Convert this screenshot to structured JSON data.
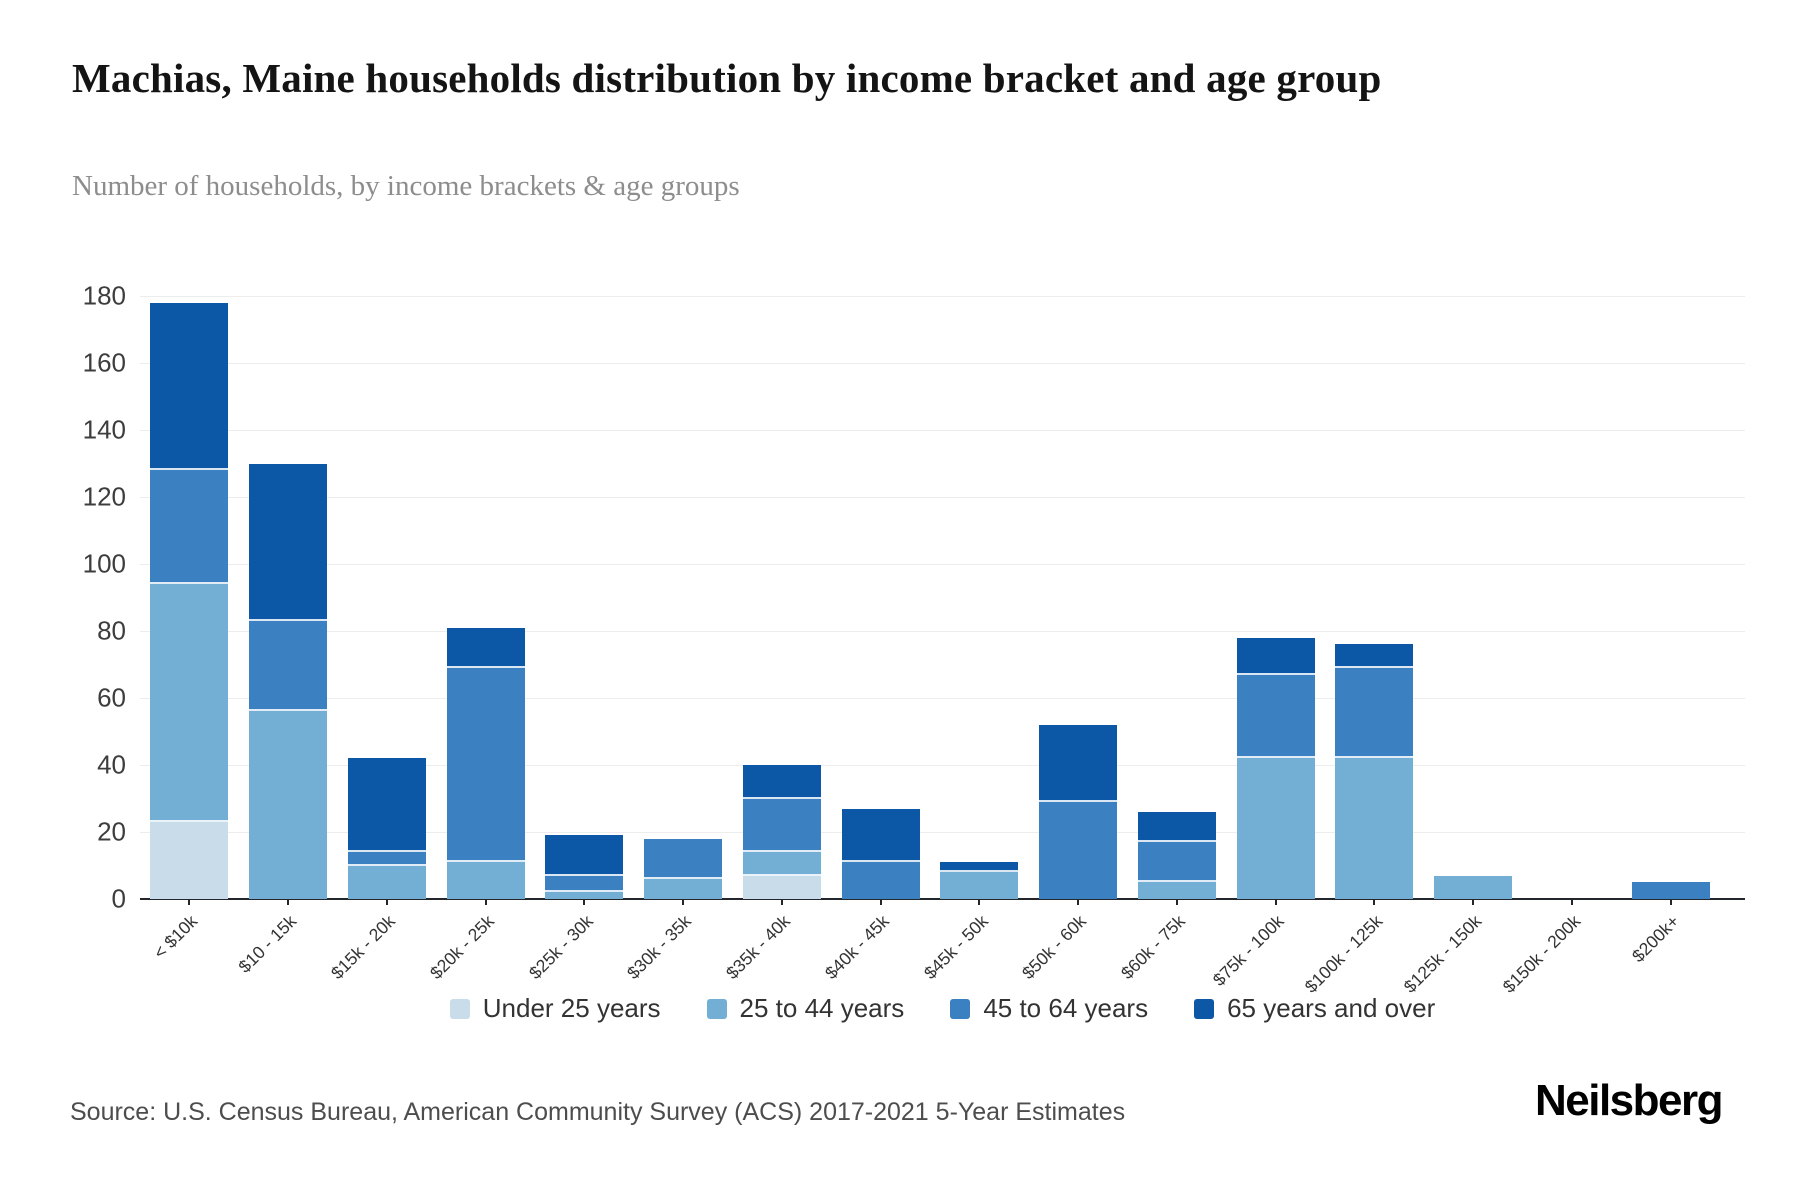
{
  "header": {
    "title": "Machias, Maine households distribution by income bracket and age group",
    "subtitle": "Number of households, by income brackets & age groups"
  },
  "footer": {
    "source": "Source: U.S. Census Bureau, American Community Survey (ACS) 2017-2021 5-Year Estimates",
    "brand": "Neilsberg"
  },
  "chart_data": {
    "type": "bar",
    "stacked": true,
    "title": "Machias, Maine households distribution by income bracket and age group",
    "subtitle": "Number of households, by income brackets & age groups",
    "categories": [
      "< $10k",
      "$10 - 15k",
      "$15k - 20k",
      "$20k - 25k",
      "$25k - 30k",
      "$30k - 35k",
      "$35k - 40k",
      "$40k - 45k",
      "$45k - 50k",
      "$50k - 60k",
      "$60k - 75k",
      "$75k - 100k",
      "$100k - 125k",
      "$125k - 150k",
      "$150k - 200k",
      "$200k+"
    ],
    "series": [
      {
        "name": "Under 25 years",
        "color": "#c9dcea",
        "values": [
          23,
          0,
          0,
          0,
          0,
          0,
          7,
          0,
          0,
          0,
          0,
          0,
          0,
          0,
          0,
          0
        ]
      },
      {
        "name": "25 to 44 years",
        "color": "#73aed4",
        "values": [
          71,
          56,
          10,
          11,
          2,
          6,
          7,
          0,
          8,
          0,
          5,
          42,
          42,
          7,
          0,
          0
        ]
      },
      {
        "name": "45 to 64 years",
        "color": "#3b80c0",
        "values": [
          34,
          27,
          4,
          58,
          5,
          12,
          16,
          11,
          0,
          29,
          12,
          25,
          27,
          0,
          0,
          5
        ]
      },
      {
        "name": "65 years and over",
        "color": "#0d57a7",
        "values": [
          50,
          47,
          28,
          12,
          12,
          0,
          10,
          16,
          3,
          23,
          9,
          11,
          7,
          0,
          0,
          0
        ]
      }
    ],
    "totals": [
      178,
      130,
      42,
      81,
      19,
      18,
      40,
      27,
      11,
      52,
      26,
      78,
      76,
      7,
      0,
      5
    ],
    "ylabel": "",
    "xlabel": "",
    "ylim": [
      0,
      180
    ],
    "ytick_step": 20,
    "grid": true,
    "legend_position": "bottom"
  }
}
